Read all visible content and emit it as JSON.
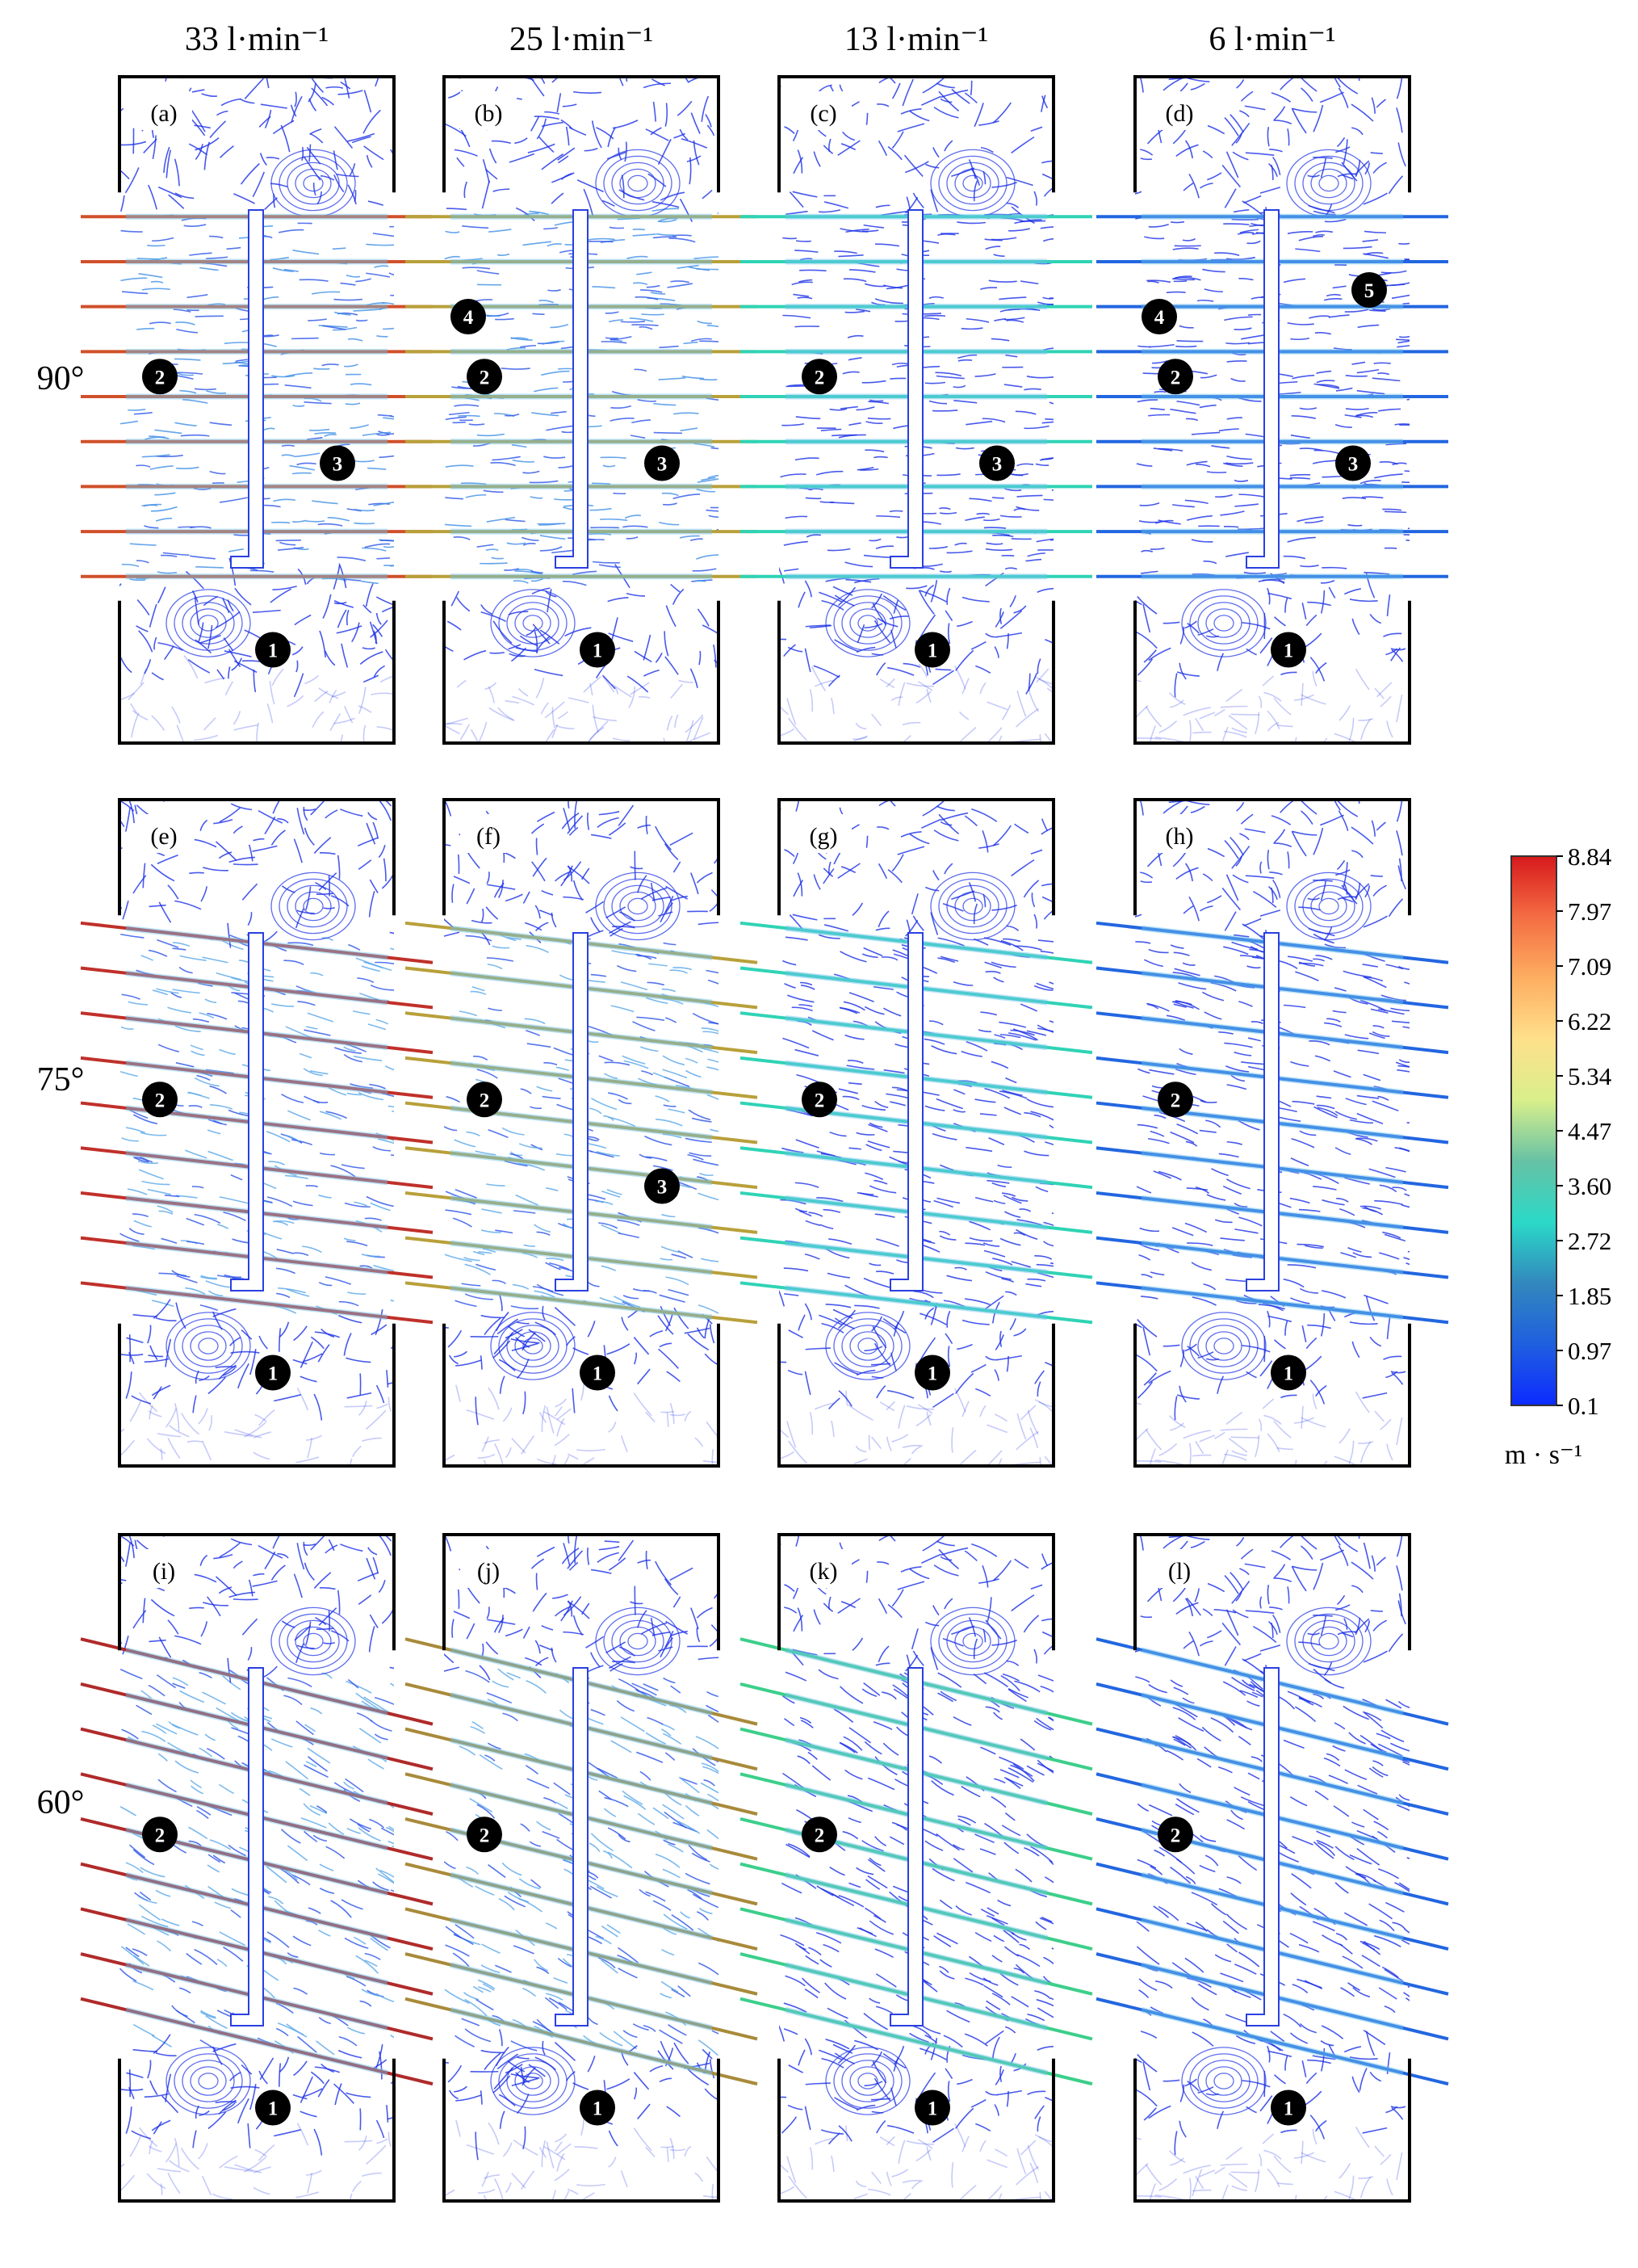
{
  "columns": [
    "33 l·min⁻¹",
    "25 l·min⁻¹",
    "13 l·min⁻¹",
    "6 l·min⁻¹"
  ],
  "rows": [
    "90°",
    "75°",
    "60°"
  ],
  "colorbar": {
    "ticks": [
      "8.84",
      "7.97",
      "7.09",
      "6.22",
      "5.34",
      "4.47",
      "3.60",
      "2.72",
      "1.85",
      "0.97",
      "0.1"
    ],
    "unit": "m · s⁻¹",
    "colors": [
      "#d7191c",
      "#f46d43",
      "#fdae61",
      "#fee08b",
      "#d9ef8b",
      "#66c2a5",
      "#2bd9c8",
      "#3288bd",
      "#1f5fe0",
      "#0d2bff"
    ]
  },
  "panels": [
    {
      "label": "(a)",
      "row": 0,
      "col": 0,
      "inlet_color": "#d0502a",
      "markers": [
        "1",
        "2",
        "3"
      ]
    },
    {
      "label": "(b)",
      "row": 0,
      "col": 1,
      "inlet_color": "#b8a03a",
      "markers": [
        "1",
        "2",
        "3",
        "4"
      ]
    },
    {
      "label": "(c)",
      "row": 0,
      "col": 2,
      "inlet_color": "#2fd3b5",
      "markers": [
        "1",
        "2",
        "3"
      ]
    },
    {
      "label": "(d)",
      "row": 0,
      "col": 3,
      "inlet_color": "#2266e0",
      "markers": [
        "1",
        "2",
        "3",
        "4",
        "5"
      ]
    },
    {
      "label": "(e)",
      "row": 1,
      "col": 0,
      "inlet_color": "#c0302a",
      "markers": [
        "1",
        "2"
      ]
    },
    {
      "label": "(f)",
      "row": 1,
      "col": 1,
      "inlet_color": "#b8a03a",
      "markers": [
        "1",
        "2",
        "3"
      ]
    },
    {
      "label": "(g)",
      "row": 1,
      "col": 2,
      "inlet_color": "#2fd3b5",
      "markers": [
        "1",
        "2"
      ]
    },
    {
      "label": "(h)",
      "row": 1,
      "col": 3,
      "inlet_color": "#2266e0",
      "markers": [
        "1",
        "2"
      ]
    },
    {
      "label": "(i)",
      "row": 2,
      "col": 0,
      "inlet_color": "#b02a2a",
      "markers": [
        "1",
        "2"
      ]
    },
    {
      "label": "(j)",
      "row": 2,
      "col": 1,
      "inlet_color": "#a88a3a",
      "markers": [
        "1",
        "2"
      ]
    },
    {
      "label": "(k)",
      "row": 2,
      "col": 2,
      "inlet_color": "#3ccf8a",
      "markers": [
        "1",
        "2"
      ]
    },
    {
      "label": "(l)",
      "row": 2,
      "col": 3,
      "inlet_color": "#2266e0",
      "markers": [
        "1",
        "2"
      ]
    }
  ]
}
